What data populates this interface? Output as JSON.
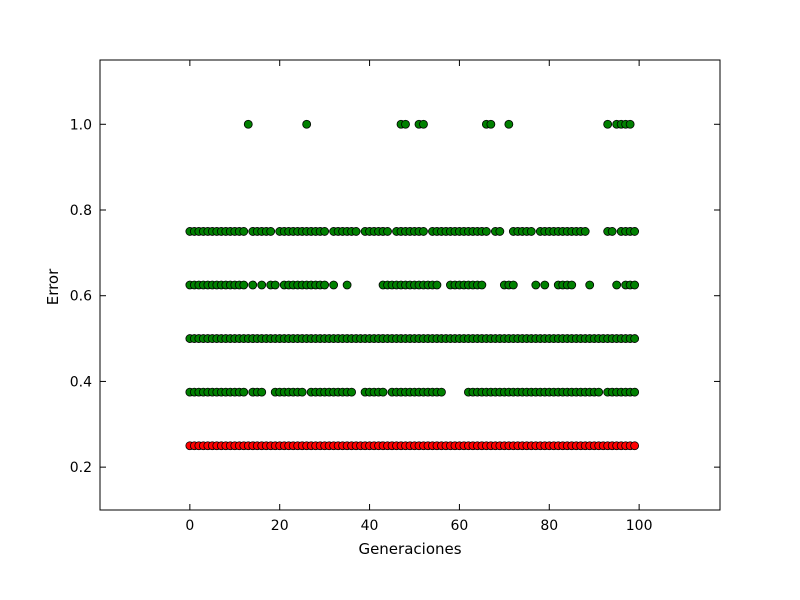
{
  "chart_data": {
    "type": "scatter",
    "title": "",
    "xlabel": "Generaciones",
    "ylabel": "Error",
    "xlim": [
      -20,
      118
    ],
    "ylim": [
      0.1,
      1.15
    ],
    "xticks": [
      "0",
      "20",
      "40",
      "60",
      "80",
      "100"
    ],
    "yticks": [
      "0.2",
      "0.4",
      "0.6",
      "0.8",
      "1.0"
    ],
    "grid": false,
    "legend": "none",
    "x_range": [
      0,
      99
    ],
    "series": [
      {
        "color": "#008000",
        "levels": [
          {
            "y": 1.0,
            "x": [
              13,
              26,
              47,
              48,
              51,
              52,
              66,
              67,
              71,
              93,
              95,
              96,
              97,
              98
            ]
          },
          {
            "y": 0.75,
            "x_excluded": [
              13,
              19,
              31,
              38,
              45,
              53,
              67,
              70,
              71,
              77,
              89,
              90,
              91,
              92,
              95
            ]
          },
          {
            "y": 0.625,
            "x_excluded": [
              13,
              15,
              17,
              20,
              31,
              33,
              34,
              36,
              37,
              38,
              39,
              40,
              41,
              42,
              56,
              57,
              66,
              67,
              68,
              69,
              73,
              74,
              75,
              76,
              78,
              80,
              81,
              86,
              87,
              88,
              90,
              91,
              92,
              93,
              94,
              96
            ]
          },
          {
            "y": 0.5,
            "x_excluded": []
          },
          {
            "y": 0.375,
            "x_excluded": [
              13,
              17,
              18,
              26,
              37,
              38,
              44,
              57,
              58,
              59,
              60,
              61,
              92
            ]
          }
        ]
      },
      {
        "color": "#ff0000",
        "levels": [
          {
            "y": 0.25,
            "x_excluded": []
          }
        ]
      }
    ]
  }
}
